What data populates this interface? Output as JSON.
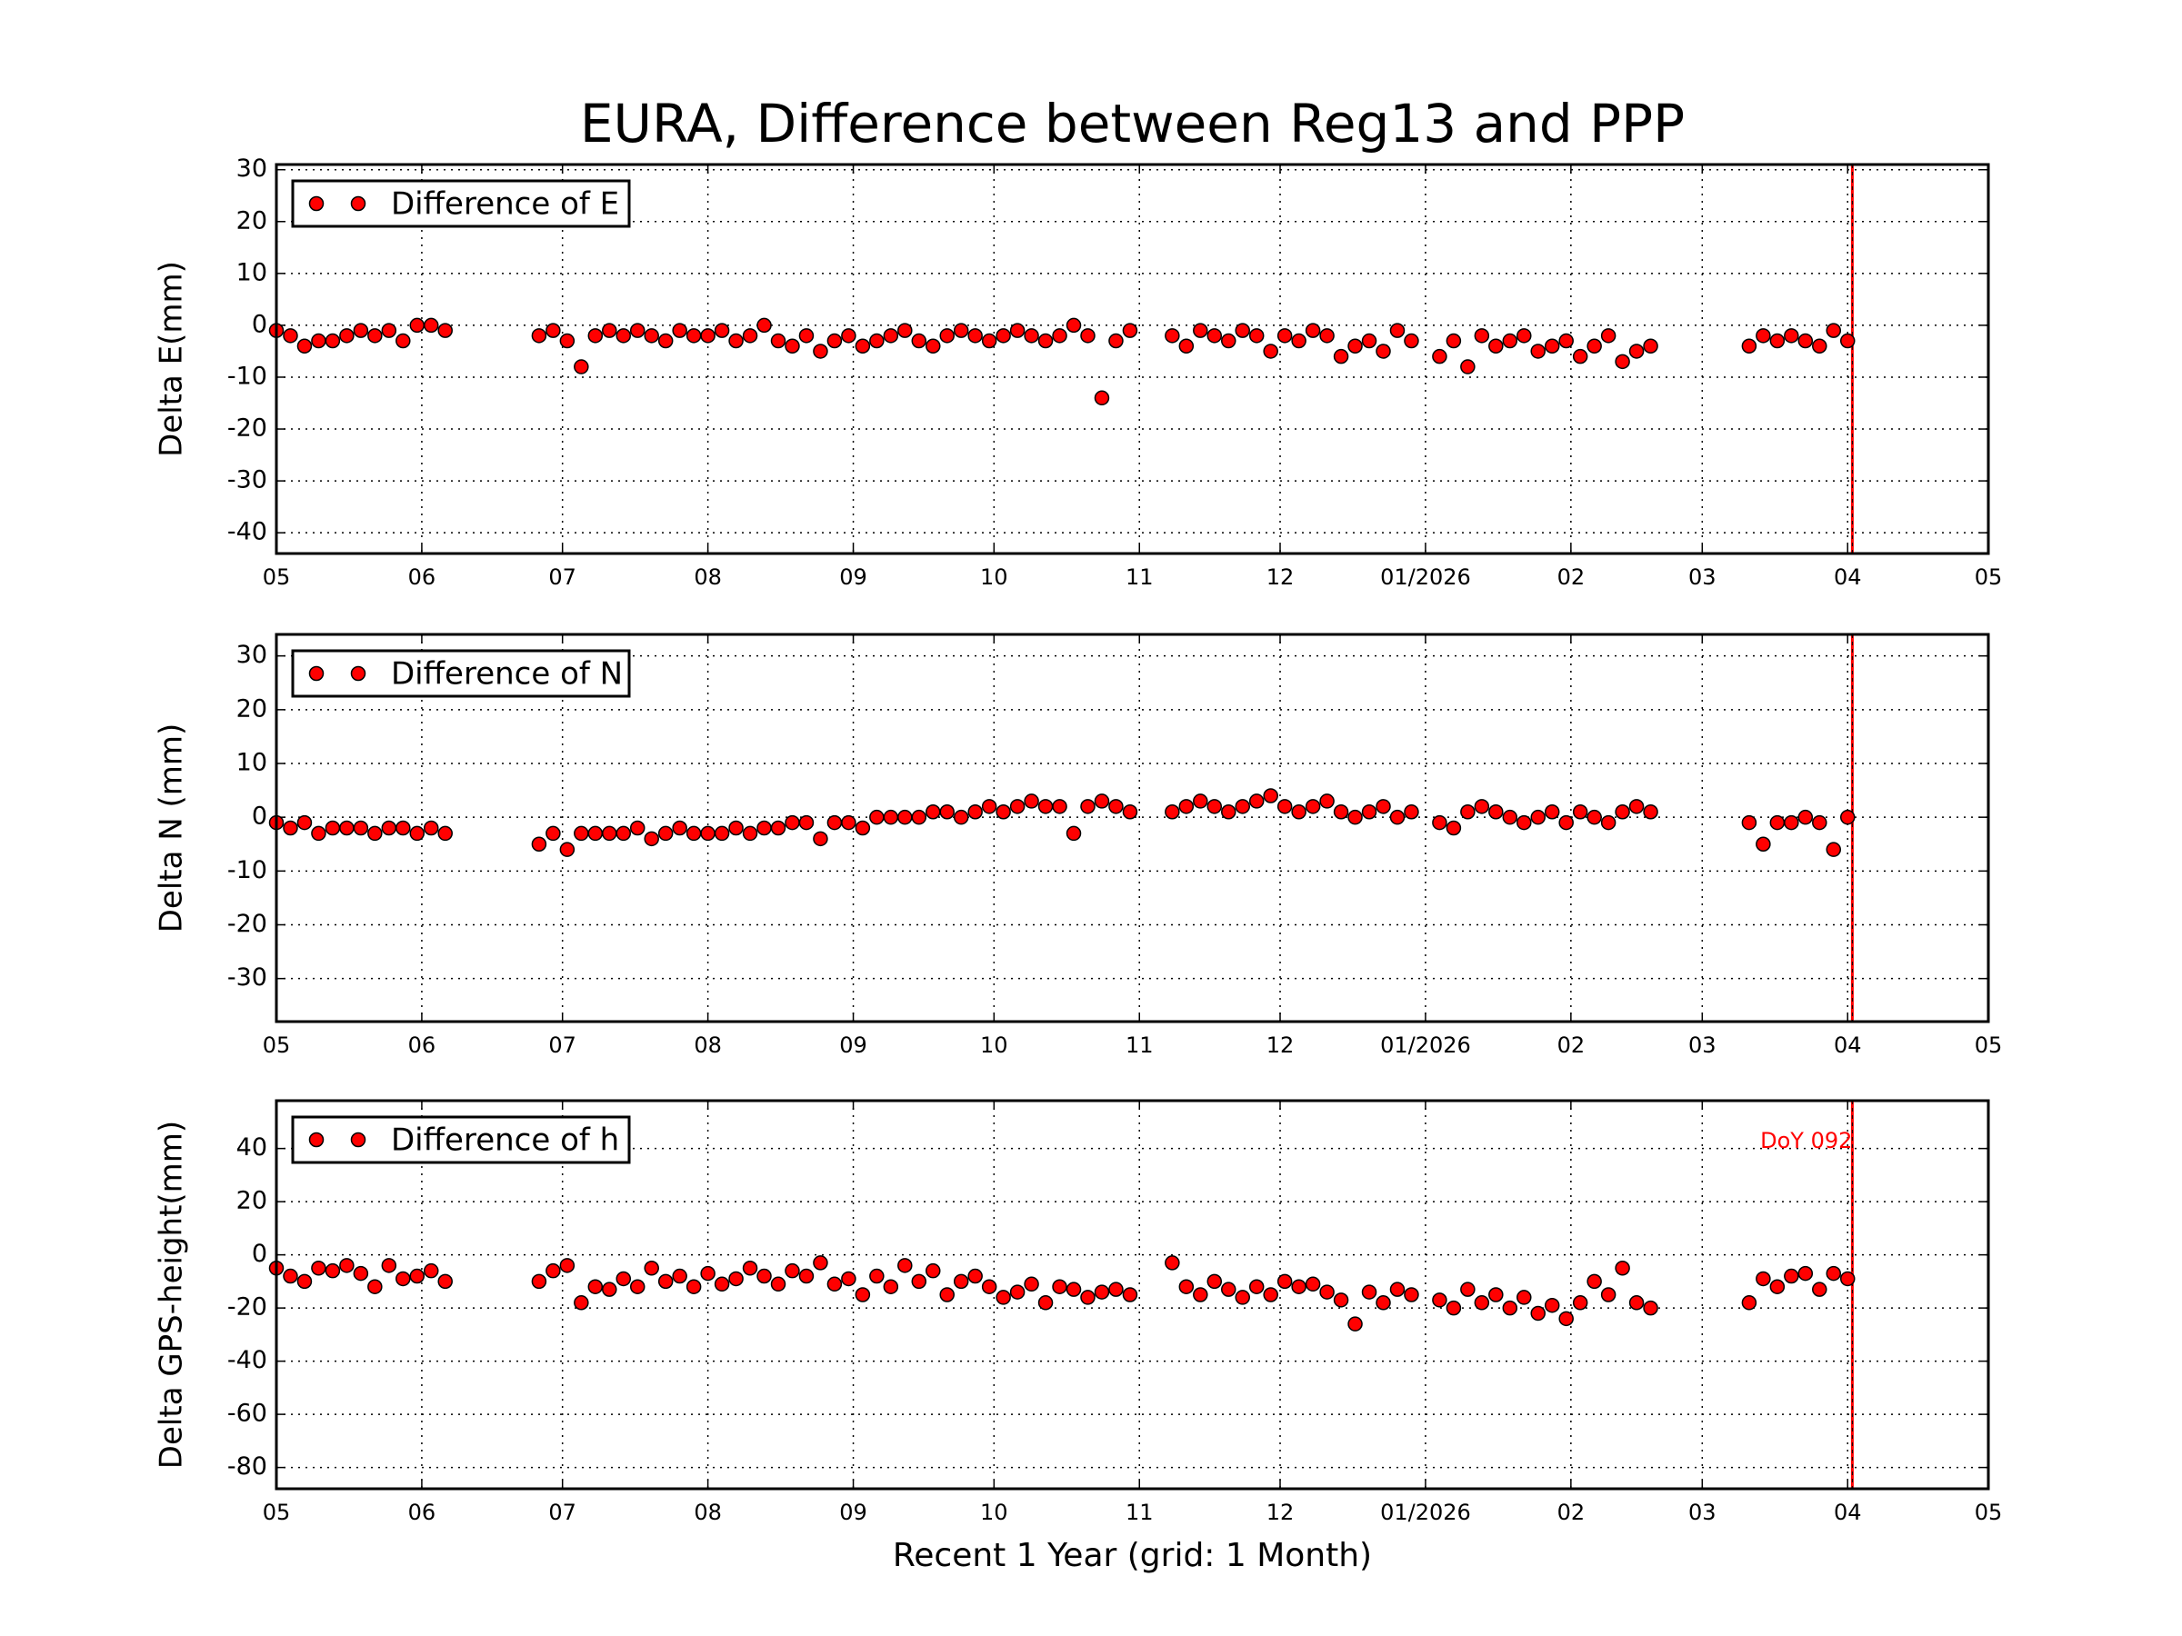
{
  "chart_data": [
    {
      "type": "scatter",
      "title": "EURA, Difference between Reg13 and PPP",
      "ylabel": "Delta E(mm)",
      "x": [
        0,
        3,
        6,
        9,
        12,
        15,
        18,
        21,
        24,
        27,
        30,
        33,
        36,
        56,
        59,
        62,
        65,
        68,
        71,
        74,
        77,
        80,
        83,
        86,
        89,
        92,
        95,
        98,
        101,
        104,
        107,
        110,
        113,
        116,
        119,
        122,
        125,
        128,
        131,
        134,
        137,
        140,
        143,
        146,
        149,
        152,
        155,
        158,
        161,
        164,
        167,
        170,
        173,
        176,
        179,
        182,
        191,
        194,
        197,
        200,
        203,
        206,
        209,
        212,
        215,
        218,
        221,
        224,
        227,
        230,
        233,
        236,
        239,
        242,
        248,
        251,
        254,
        257,
        260,
        263,
        266,
        269,
        272,
        275,
        278,
        281,
        284,
        287,
        290,
        293,
        314,
        317,
        320,
        323,
        326,
        329,
        332,
        335
      ],
      "series": [
        {
          "name": "Difference of E",
          "color": "#ff0000",
          "values": [
            -1,
            -2,
            -4,
            -3,
            -3,
            -2,
            -1,
            -2,
            -1,
            -3,
            0,
            0,
            -1,
            -2,
            -1,
            -3,
            -8,
            -2,
            -1,
            -2,
            -1,
            -2,
            -3,
            -1,
            -2,
            -2,
            -1,
            -3,
            -2,
            0,
            -3,
            -4,
            -2,
            -5,
            -3,
            -2,
            -4,
            -3,
            -2,
            -1,
            -3,
            -4,
            -2,
            -1,
            -2,
            -3,
            -2,
            -1,
            -2,
            -3,
            -2,
            0,
            -2,
            -14,
            -3,
            -1,
            -2,
            -4,
            -1,
            -2,
            -3,
            -1,
            -2,
            -5,
            -2,
            -3,
            -1,
            -2,
            -6,
            -4,
            -3,
            -5,
            -1,
            -3,
            -6,
            -3,
            -8,
            -2,
            -4,
            -3,
            -2,
            -5,
            -4,
            -3,
            -6,
            -4,
            -2,
            -7,
            -5,
            -4,
            -4,
            -2,
            -3,
            -2,
            -3,
            -4,
            -1,
            -3
          ]
        }
      ],
      "xlim": [
        0,
        365
      ],
      "xticks": [
        {
          "value": 0,
          "label": "05"
        },
        {
          "value": 31,
          "label": "06"
        },
        {
          "value": 61,
          "label": "07"
        },
        {
          "value": 92,
          "label": "08"
        },
        {
          "value": 123,
          "label": "09"
        },
        {
          "value": 153,
          "label": "10"
        },
        {
          "value": 184,
          "label": "11"
        },
        {
          "value": 214,
          "label": "12"
        },
        {
          "value": 245,
          "label": "01/2026"
        },
        {
          "value": 276,
          "label": "02"
        },
        {
          "value": 304,
          "label": "03"
        },
        {
          "value": 335,
          "label": "04"
        },
        {
          "value": 365,
          "label": "05"
        }
      ],
      "ylim": [
        -44,
        31
      ],
      "yticks": [
        -40,
        -30,
        -20,
        -10,
        0,
        10,
        20,
        30
      ],
      "grid": true,
      "legend": "upper left",
      "vline": 336,
      "vline_color": "#ff0000"
    },
    {
      "type": "scatter",
      "ylabel": "Delta N (mm)",
      "x": [
        0,
        3,
        6,
        9,
        12,
        15,
        18,
        21,
        24,
        27,
        30,
        33,
        36,
        56,
        59,
        62,
        65,
        68,
        71,
        74,
        77,
        80,
        83,
        86,
        89,
        92,
        95,
        98,
        101,
        104,
        107,
        110,
        113,
        116,
        119,
        122,
        125,
        128,
        131,
        134,
        137,
        140,
        143,
        146,
        149,
        152,
        155,
        158,
        161,
        164,
        167,
        170,
        173,
        176,
        179,
        182,
        191,
        194,
        197,
        200,
        203,
        206,
        209,
        212,
        215,
        218,
        221,
        224,
        227,
        230,
        233,
        236,
        239,
        242,
        248,
        251,
        254,
        257,
        260,
        263,
        266,
        269,
        272,
        275,
        278,
        281,
        284,
        287,
        290,
        293,
        314,
        317,
        320,
        323,
        326,
        329,
        332,
        335
      ],
      "series": [
        {
          "name": "Difference of N",
          "color": "#ff0000",
          "values": [
            -1,
            -2,
            -1,
            -3,
            -2,
            -2,
            -2,
            -3,
            -2,
            -2,
            -3,
            -2,
            -3,
            -5,
            -3,
            -6,
            -3,
            -3,
            -3,
            -3,
            -2,
            -4,
            -3,
            -2,
            -3,
            -3,
            -3,
            -2,
            -3,
            -2,
            -2,
            -1,
            -1,
            -4,
            -1,
            -1,
            -2,
            0,
            0,
            0,
            0,
            1,
            1,
            0,
            1,
            2,
            1,
            2,
            3,
            2,
            2,
            -3,
            2,
            3,
            2,
            1,
            1,
            2,
            3,
            2,
            1,
            2,
            3,
            4,
            2,
            1,
            2,
            3,
            1,
            0,
            1,
            2,
            0,
            1,
            -1,
            -2,
            1,
            2,
            1,
            0,
            -1,
            0,
            1,
            -1,
            1,
            0,
            -1,
            1,
            2,
            1,
            -1,
            -5,
            -1,
            -1,
            0,
            -1,
            -6,
            0
          ]
        }
      ],
      "xlim": [
        0,
        365
      ],
      "xticks": [
        {
          "value": 0,
          "label": "05"
        },
        {
          "value": 31,
          "label": "06"
        },
        {
          "value": 61,
          "label": "07"
        },
        {
          "value": 92,
          "label": "08"
        },
        {
          "value": 123,
          "label": "09"
        },
        {
          "value": 153,
          "label": "10"
        },
        {
          "value": 184,
          "label": "11"
        },
        {
          "value": 214,
          "label": "12"
        },
        {
          "value": 245,
          "label": "01/2026"
        },
        {
          "value": 276,
          "label": "02"
        },
        {
          "value": 304,
          "label": "03"
        },
        {
          "value": 335,
          "label": "04"
        },
        {
          "value": 365,
          "label": "05"
        }
      ],
      "ylim": [
        -38,
        34
      ],
      "yticks": [
        -30,
        -20,
        -10,
        0,
        10,
        20,
        30
      ],
      "grid": true,
      "legend": "upper left",
      "vline": 336,
      "vline_color": "#ff0000"
    },
    {
      "type": "scatter",
      "ylabel": "Delta GPS-height(mm)",
      "xlabel": "Recent 1 Year (grid: 1 Month)",
      "annotation": "DoY 092",
      "x": [
        0,
        3,
        6,
        9,
        12,
        15,
        18,
        21,
        24,
        27,
        30,
        33,
        36,
        56,
        59,
        62,
        65,
        68,
        71,
        74,
        77,
        80,
        83,
        86,
        89,
        92,
        95,
        98,
        101,
        104,
        107,
        110,
        113,
        116,
        119,
        122,
        125,
        128,
        131,
        134,
        137,
        140,
        143,
        146,
        149,
        152,
        155,
        158,
        161,
        164,
        167,
        170,
        173,
        176,
        179,
        182,
        191,
        194,
        197,
        200,
        203,
        206,
        209,
        212,
        215,
        218,
        221,
        224,
        227,
        230,
        233,
        236,
        239,
        242,
        248,
        251,
        254,
        257,
        260,
        263,
        266,
        269,
        272,
        275,
        278,
        281,
        284,
        287,
        290,
        293,
        314,
        317,
        320,
        323,
        326,
        329,
        332,
        335
      ],
      "series": [
        {
          "name": "Difference of h",
          "color": "#ff0000",
          "values": [
            -5,
            -8,
            -10,
            -5,
            -6,
            -4,
            -7,
            -12,
            -4,
            -9,
            -8,
            -6,
            -10,
            -10,
            -6,
            -4,
            -18,
            -12,
            -13,
            -9,
            -12,
            -5,
            -10,
            -8,
            -12,
            -7,
            -11,
            -9,
            -5,
            -8,
            -11,
            -6,
            -8,
            -3,
            -11,
            -9,
            -15,
            -8,
            -12,
            -4,
            -10,
            -6,
            -15,
            -10,
            -8,
            -12,
            -16,
            -14,
            -11,
            -18,
            -12,
            -13,
            -16,
            -14,
            -13,
            -15,
            -3,
            -12,
            -15,
            -10,
            -13,
            -16,
            -12,
            -15,
            -10,
            -12,
            -11,
            -14,
            -17,
            -26,
            -14,
            -18,
            -13,
            -15,
            -17,
            -20,
            -13,
            -18,
            -15,
            -20,
            -16,
            -22,
            -19,
            -24,
            -18,
            -10,
            -15,
            -5,
            -18,
            -20,
            -18,
            -9,
            -12,
            -8,
            -7,
            -13,
            -7,
            -9
          ]
        }
      ],
      "xlim": [
        0,
        365
      ],
      "xticks": [
        {
          "value": 0,
          "label": "05"
        },
        {
          "value": 31,
          "label": "06"
        },
        {
          "value": 61,
          "label": "07"
        },
        {
          "value": 92,
          "label": "08"
        },
        {
          "value": 123,
          "label": "09"
        },
        {
          "value": 153,
          "label": "10"
        },
        {
          "value": 184,
          "label": "11"
        },
        {
          "value": 214,
          "label": "12"
        },
        {
          "value": 245,
          "label": "01/2026"
        },
        {
          "value": 276,
          "label": "02"
        },
        {
          "value": 304,
          "label": "03"
        },
        {
          "value": 335,
          "label": "04"
        },
        {
          "value": 365,
          "label": "05"
        }
      ],
      "ylim": [
        -88,
        58
      ],
      "yticks": [
        -80,
        -60,
        -40,
        -20,
        0,
        20,
        40
      ],
      "grid": true,
      "legend": "upper left",
      "vline": 336,
      "vline_color": "#ff0000"
    }
  ]
}
